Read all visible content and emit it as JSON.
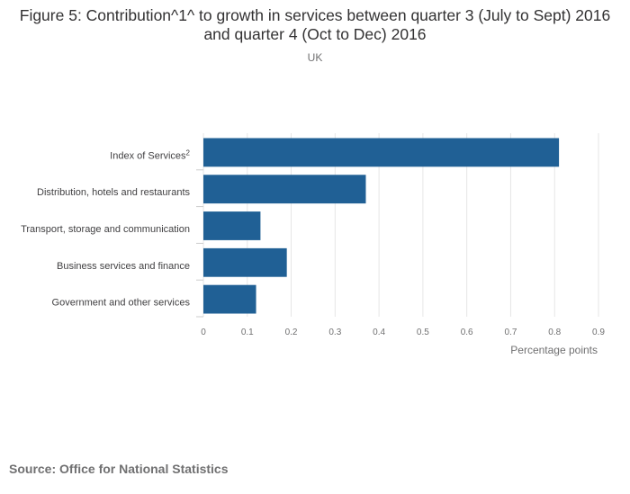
{
  "title": "Figure 5: Contribution^1^ to growth in services between quarter 3 (July to Sept) 2016 and quarter 4 (Oct to Dec) 2016",
  "subtitle": "UK",
  "source": "Source: Office for National Statistics",
  "chart_data": {
    "type": "bar",
    "orientation": "horizontal",
    "categories": [
      "Index of Services",
      "Distribution, hotels and restaurants",
      "Transport, storage and communication",
      "Business services and finance",
      "Government and other services"
    ],
    "category_superscripts": [
      "2",
      "",
      "",
      "",
      ""
    ],
    "values": [
      0.81,
      0.37,
      0.13,
      0.19,
      0.12
    ],
    "xlabel": "Percentage points",
    "ylabel": "",
    "xlim": [
      0,
      0.9
    ],
    "xticks": [
      "0",
      "0.1",
      "0.2",
      "0.3",
      "0.4",
      "0.5",
      "0.6",
      "0.7",
      "0.8",
      "0.9"
    ],
    "grid": true,
    "bar_color": "#206095"
  }
}
